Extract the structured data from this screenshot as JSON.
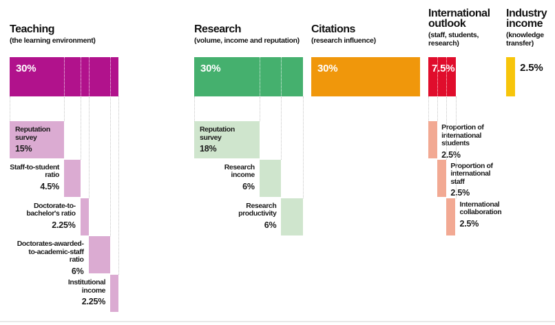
{
  "chart_data": {
    "type": "bar",
    "subtype": "weighted-breakdown-waterfall",
    "title": "",
    "unit": "%",
    "legend": "none",
    "grid": "dotted-vertical-guides",
    "style": {
      "background": "#ffffff",
      "text_color": "#1a1a1a",
      "guide_color": "#c4c4c4",
      "bar_divider_color": "#ffffff",
      "value_on_bar_color": "#ffffff",
      "bottom_rule_color": "#e9e9e9"
    },
    "sections": [
      {
        "id": "teaching",
        "title": "Teaching",
        "subtitle": "(the learning environment)",
        "weight": 30,
        "weight_label": "30%",
        "weight_label_placement": "inside",
        "color": "#b1128c",
        "sub_color": "#dbabd2",
        "items": [
          {
            "label": "Reputation survey",
            "value": 15,
            "value_label": "15%",
            "label_placement": "inside"
          },
          {
            "label": "Staff-to-student ratio",
            "value": 4.5,
            "value_label": "4.5%",
            "label_placement": "left"
          },
          {
            "label": "Doctorate-to-bachelor's ratio",
            "value": 2.25,
            "value_label": "2.25%",
            "label_placement": "left"
          },
          {
            "label": "Doctorates-awarded-to-academic-staff ratio",
            "value": 6,
            "value_label": "6%",
            "label_placement": "left"
          },
          {
            "label": "Institutional income",
            "value": 2.25,
            "value_label": "2.25%",
            "label_placement": "left"
          }
        ]
      },
      {
        "id": "research",
        "title": "Research",
        "subtitle": "(volume, income and reputation)",
        "weight": 30,
        "weight_label": "30%",
        "weight_label_placement": "inside",
        "color": "#45b06e",
        "sub_color": "#cfe5cd",
        "items": [
          {
            "label": "Reputation survey",
            "value": 18,
            "value_label": "18%",
            "label_placement": "inside"
          },
          {
            "label": "Research income",
            "value": 6,
            "value_label": "6%",
            "label_placement": "left"
          },
          {
            "label": "Research productivity",
            "value": 6,
            "value_label": "6%",
            "label_placement": "left"
          }
        ]
      },
      {
        "id": "citations",
        "title": "Citations",
        "subtitle": "(research influence)",
        "weight": 30,
        "weight_label": "30%",
        "weight_label_placement": "inside",
        "color": "#f0970b",
        "sub_color": "#f0970b",
        "items": []
      },
      {
        "id": "international-outlook",
        "title": "International outlook",
        "subtitle": "(staff, students, research)",
        "weight": 7.5,
        "weight_label": "7.5%",
        "weight_label_placement": "inside",
        "color": "#e00d2c",
        "sub_color": "#f2a993",
        "items": [
          {
            "label": "Proportion of international students",
            "value": 2.5,
            "value_label": "2.5%",
            "label_placement": "right"
          },
          {
            "label": "Proportion of international staff",
            "value": 2.5,
            "value_label": "2.5%",
            "label_placement": "right"
          },
          {
            "label": "International collaboration",
            "value": 2.5,
            "value_label": "2.5%",
            "label_placement": "right"
          }
        ]
      },
      {
        "id": "industry-income",
        "title": "Industry income",
        "subtitle": "(knowledge transfer)",
        "weight": 2.5,
        "weight_label": "2.5%",
        "weight_label_placement": "outside-right",
        "color": "#f7c50b",
        "sub_color": "#f7c50b",
        "items": []
      }
    ]
  }
}
